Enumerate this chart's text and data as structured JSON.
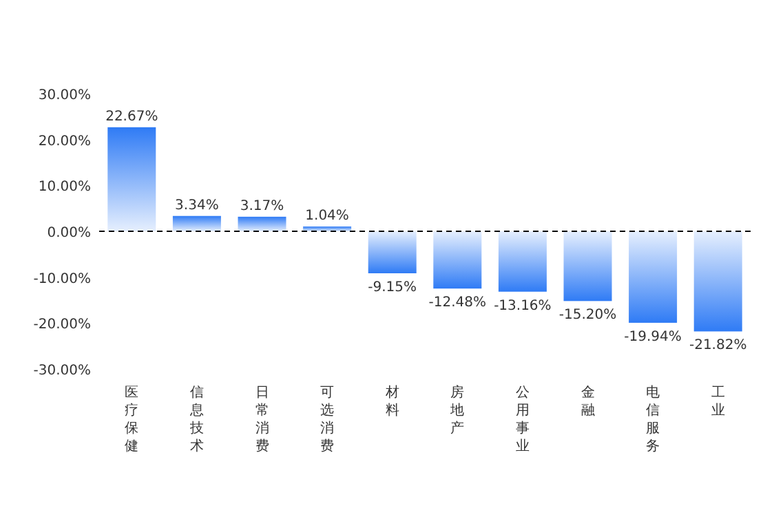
{
  "chart_data": {
    "type": "bar",
    "categories": [
      "医疗保健",
      "信息技术",
      "日常消费",
      "可选消费",
      "材料",
      "房地产",
      "公用事业",
      "金融",
      "电信服务",
      "工业"
    ],
    "values": [
      22.67,
      3.34,
      3.17,
      1.04,
      -9.15,
      -12.48,
      -13.16,
      -15.2,
      -19.94,
      -21.82
    ],
    "value_labels": [
      "22.67%",
      "3.34%",
      "3.17%",
      "1.04%",
      "-9.15%",
      "-12.48%",
      "-13.16%",
      "-15.20%",
      "-19.94%",
      "-21.82%"
    ],
    "color": "#2f7bf5",
    "ylim": [
      -30,
      30
    ],
    "yticks": [
      {
        "value": 30,
        "label": "30.00%"
      },
      {
        "value": 20,
        "label": "20.00%"
      },
      {
        "value": 10,
        "label": "10.00%"
      },
      {
        "value": 0,
        "label": "0.00%"
      },
      {
        "value": -10,
        "label": "-10.00%"
      },
      {
        "value": -20,
        "label": "-20.00%"
      },
      {
        "value": -30,
        "label": "-30.00%"
      }
    ],
    "ref_lines": [
      {
        "axis": "y",
        "value": 0,
        "line_style": "dashed",
        "color": "#000000"
      }
    ]
  }
}
